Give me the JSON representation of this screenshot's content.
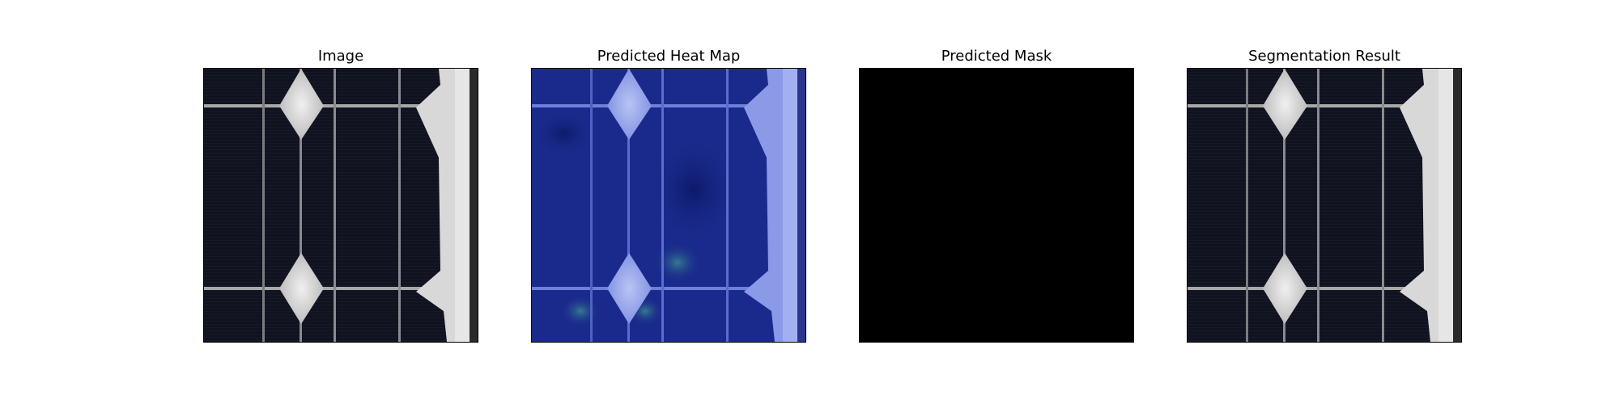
{
  "figure": {
    "panels": [
      {
        "title": "Image"
      },
      {
        "title": "Predicted Heat Map"
      },
      {
        "title": "Predicted Mask"
      },
      {
        "title": "Segmentation Result"
      }
    ]
  },
  "colors": {
    "cell_dark": "#10131f",
    "busbar_silver": "#c8c8c8",
    "frame_white": "#e2e2e2",
    "heatmap_blue": "#1a2a8c",
    "heatmap_hot": "#9db0f0",
    "mask_black": "#000000"
  }
}
